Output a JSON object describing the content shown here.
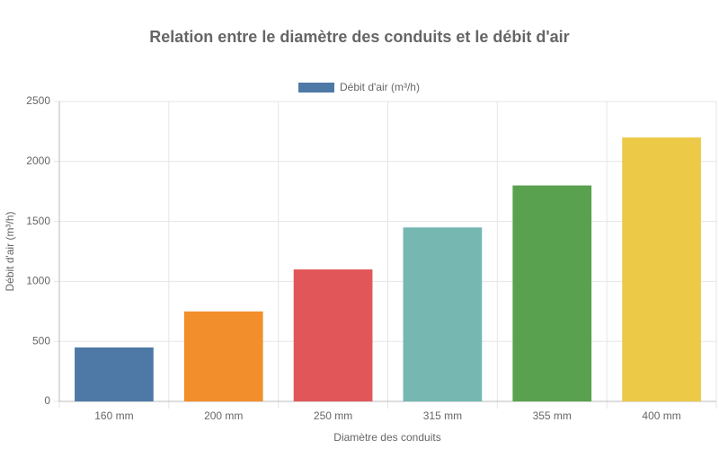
{
  "chart_data": {
    "type": "bar",
    "title": "Relation entre le diamètre des conduits et le débit d'air",
    "x_label": "Diamètre des conduits",
    "y_label": "Débit d'air (m³/h)",
    "categories": [
      "160 mm",
      "200 mm",
      "250 mm",
      "315 mm",
      "355 mm",
      "400 mm"
    ],
    "series": [
      {
        "name": "Débit d'air (m³/h)",
        "color": [
          "#4e79a7",
          "#f28e2b",
          "#e15759",
          "#76b7b2",
          "#59a14f",
          "#edc948"
        ],
        "values": [
          450,
          750,
          1100,
          1450,
          1800,
          2200
        ]
      }
    ],
    "ylim": [
      0,
      2500
    ],
    "yticks": [
      0,
      500,
      1000,
      1500,
      2000,
      2500
    ],
    "grid": true,
    "legend": "top"
  }
}
